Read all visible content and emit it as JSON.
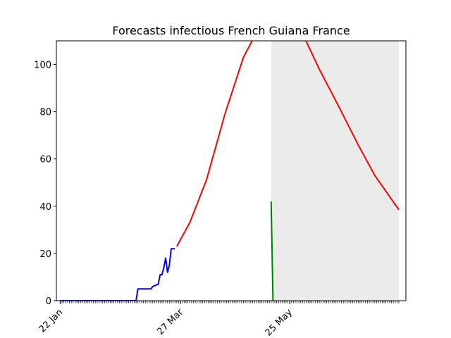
{
  "chart_data": {
    "type": "line",
    "title": "Forecasts infectious French Guiana France",
    "xlabel": "",
    "ylabel": "",
    "x_start": "2020-01-22",
    "x_end": "2020-07-23",
    "xlim": [
      "2020-01-22",
      "2020-07-23"
    ],
    "ylim": [
      0,
      110
    ],
    "yticks": [
      0,
      20,
      40,
      60,
      80,
      100
    ],
    "xticks": [
      {
        "date": "2020-01-22",
        "label": "22 Jan"
      },
      {
        "date": "2020-03-27",
        "label": "27 Mar"
      },
      {
        "date": "2020-05-25",
        "label": "25 May"
      }
    ],
    "grid": false,
    "shaded_region": {
      "from": "2020-05-15",
      "to": "2020-07-23",
      "color": "#ebebeb"
    },
    "series": [
      {
        "color": "#0000ff",
        "x": [
          "2020-01-22",
          "2020-03-03",
          "2020-03-04",
          "2020-03-11",
          "2020-03-12",
          "2020-03-15",
          "2020-03-16",
          "2020-03-17",
          "2020-03-18",
          "2020-03-19",
          "2020-03-20",
          "2020-03-21",
          "2020-03-22",
          "2020-03-23",
          "2020-03-24"
        ],
        "values": [
          0,
          0,
          5,
          5,
          6,
          7,
          11,
          11,
          14,
          18,
          12,
          15,
          22,
          22,
          22
        ]
      },
      {
        "color": "#ff0000",
        "x": [
          "2020-03-25",
          "2020-04-01",
          "2020-04-10",
          "2020-04-20",
          "2020-04-30",
          "2020-05-06",
          "2020-05-10",
          "2020-05-15",
          "2020-05-20",
          "2020-06-01",
          "2020-06-10",
          "2020-06-20",
          "2020-07-01",
          "2020-07-10",
          "2020-07-23"
        ],
        "values": [
          23,
          33,
          51,
          79,
          103,
          112,
          118,
          122,
          121,
          113,
          98,
          83,
          66,
          53,
          38.5
        ]
      },
      {
        "color": "#008000",
        "x": [
          "2020-05-15",
          "2020-05-16"
        ],
        "values": [
          42,
          0
        ]
      }
    ]
  }
}
